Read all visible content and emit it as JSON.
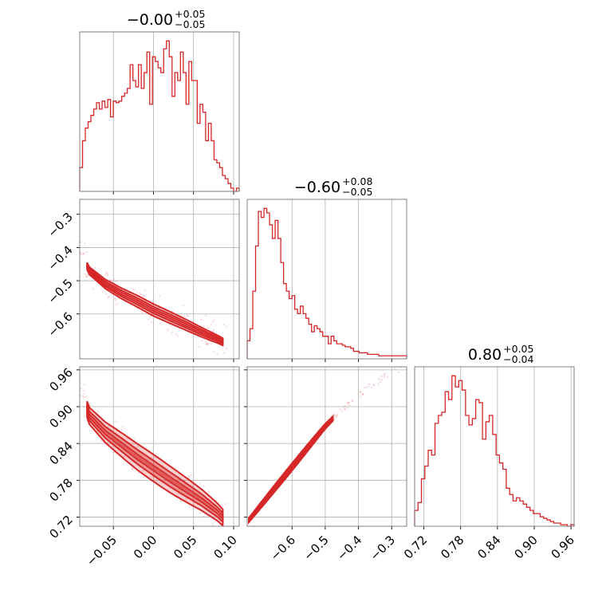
{
  "chart_data": {
    "type": "corner",
    "color": "#d62728",
    "grid": true,
    "params": [
      {
        "range": [
          -0.092,
          0.107
        ],
        "ticks": [
          -0.05,
          0.0,
          0.05,
          0.1
        ],
        "tick_labels": [
          "−0.05",
          "0.00",
          "0.05",
          "0.10"
        ],
        "title_main": "−0.00",
        "title_sup": "+0.05",
        "title_sub": "−0.05",
        "hist_counts": [
          15,
          32,
          40,
          44,
          48,
          52,
          56,
          52,
          57,
          53,
          58,
          47,
          57,
          56,
          57,
          60,
          62,
          65,
          80,
          70,
          66,
          80,
          65,
          75,
          88,
          55,
          85,
          82,
          78,
          75,
          90,
          95,
          85,
          60,
          75,
          70,
          88,
          75,
          55,
          82,
          70,
          70,
          43,
          55,
          50,
          32,
          43,
          32,
          20,
          18,
          15,
          10,
          8,
          5,
          2,
          0,
          2
        ]
      },
      {
        "range": [
          -0.735,
          -0.255
        ],
        "ticks": [
          -0.6,
          -0.5,
          -0.4,
          -0.3
        ],
        "tick_labels": [
          "−0.6",
          "−0.5",
          "−0.4",
          "−0.3"
        ],
        "title_main": "−0.60",
        "title_sup": "+0.08",
        "title_sub": "−0.05",
        "hist_counts": [
          12,
          20,
          45,
          75,
          98,
          94,
          100,
          97,
          89,
          80,
          92,
          80,
          64,
          50,
          45,
          40,
          42,
          33,
          30,
          35,
          30,
          27,
          23,
          18,
          22,
          20,
          18,
          15,
          15,
          10,
          15,
          12,
          10,
          10,
          9,
          8,
          8,
          7,
          5,
          5,
          4,
          4,
          4,
          3,
          3,
          3,
          3,
          2,
          2,
          2,
          2,
          2,
          2,
          2,
          2,
          2,
          2
        ]
      },
      {
        "range": [
          0.705,
          0.965
        ],
        "ticks": [
          0.72,
          0.78,
          0.84,
          0.9,
          0.96
        ],
        "tick_labels": [
          "0.72",
          "0.78",
          "0.84",
          "0.90",
          "0.96"
        ],
        "title_main": "0.80",
        "title_sup": "+0.05",
        "title_sub": "−0.04",
        "hist_counts": [
          10,
          15,
          30,
          38,
          48,
          45,
          65,
          70,
          72,
          85,
          80,
          95,
          88,
          92,
          86,
          70,
          64,
          68,
          80,
          78,
          55,
          66,
          70,
          58,
          45,
          40,
          36,
          24,
          20,
          16,
          18,
          16,
          14,
          12,
          10,
          8,
          8,
          6,
          5,
          4,
          3,
          2,
          2,
          1,
          1,
          0,
          1
        ]
      }
    ],
    "pairs": [
      {
        "x_param": 0,
        "y_param": 1,
        "y_ticks": [
          -0.6,
          -0.5,
          -0.4,
          -0.3
        ],
        "y_tick_labels": [
          "−0.6",
          "−0.5",
          "−0.4",
          "−0.3"
        ],
        "curve": [
          [
            -0.092,
            -0.41
          ],
          [
            -0.08,
            -0.47
          ],
          [
            -0.06,
            -0.51
          ],
          [
            -0.04,
            -0.538
          ],
          [
            -0.02,
            -0.562
          ],
          [
            0.0,
            -0.588
          ],
          [
            0.02,
            -0.61
          ],
          [
            0.04,
            -0.632
          ],
          [
            0.06,
            -0.655
          ],
          [
            0.08,
            -0.676
          ],
          [
            0.092,
            -0.69
          ]
        ],
        "width_data": 0.018
      },
      {
        "x_param": 0,
        "y_param": 2,
        "y_ticks": [
          0.72,
          0.78,
          0.84,
          0.9,
          0.96
        ],
        "y_tick_labels": [
          "0.72",
          "0.78",
          "0.84",
          "0.90",
          "0.96"
        ],
        "curve": [
          [
            -0.092,
            0.93
          ],
          [
            -0.08,
            0.885
          ],
          [
            -0.06,
            0.858
          ],
          [
            -0.04,
            0.838
          ],
          [
            -0.02,
            0.818
          ],
          [
            0.0,
            0.8
          ],
          [
            0.02,
            0.782
          ],
          [
            0.04,
            0.765
          ],
          [
            0.06,
            0.748
          ],
          [
            0.08,
            0.728
          ],
          [
            0.092,
            0.712
          ]
        ],
        "width_data": 0.022
      },
      {
        "x_param": 1,
        "y_param": 2,
        "y_ticks": [
          0.72,
          0.78,
          0.84,
          0.9,
          0.96
        ],
        "y_tick_labels": [
          "",
          "",
          "",
          "",
          ""
        ],
        "curve": [
          [
            -0.73,
            0.715
          ],
          [
            -0.7,
            0.735
          ],
          [
            -0.67,
            0.755
          ],
          [
            -0.64,
            0.775
          ],
          [
            -0.61,
            0.795
          ],
          [
            -0.58,
            0.815
          ],
          [
            -0.55,
            0.835
          ],
          [
            -0.52,
            0.855
          ],
          [
            -0.5,
            0.868
          ],
          [
            -0.45,
            0.895
          ],
          [
            -0.4,
            0.918
          ],
          [
            -0.35,
            0.938
          ],
          [
            -0.3,
            0.955
          ],
          [
            -0.27,
            0.963
          ]
        ],
        "width_data": 0.006
      }
    ]
  }
}
